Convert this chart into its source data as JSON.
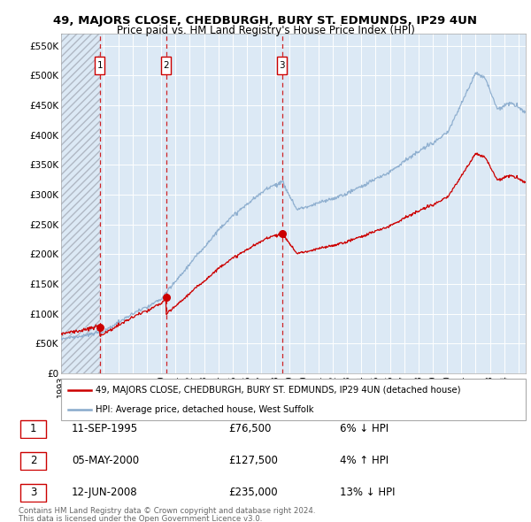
{
  "title": "49, MAJORS CLOSE, CHEDBURGH, BURY ST. EDMUNDS, IP29 4UN",
  "subtitle": "Price paid vs. HM Land Registry's House Price Index (HPI)",
  "sale_info": [
    {
      "label": "1",
      "date": "11-SEP-1995",
      "price": "£76,500",
      "hpi": "6% ↓ HPI"
    },
    {
      "label": "2",
      "date": "05-MAY-2000",
      "price": "£127,500",
      "hpi": "4% ↑ HPI"
    },
    {
      "label": "3",
      "date": "12-JUN-2008",
      "price": "£235,000",
      "hpi": "13% ↓ HPI"
    }
  ],
  "legend_line1": "49, MAJORS CLOSE, CHEDBURGH, BURY ST. EDMUNDS, IP29 4UN (detached house)",
  "legend_line2": "HPI: Average price, detached house, West Suffolk",
  "footnote1": "Contains HM Land Registry data © Crown copyright and database right 2024.",
  "footnote2": "This data is licensed under the Open Government Licence v3.0.",
  "property_line_color": "#cc0000",
  "hpi_line_color": "#88aacc",
  "ylim": [
    0,
    570000
  ],
  "yticks": [
    0,
    50000,
    100000,
    150000,
    200000,
    250000,
    300000,
    350000,
    400000,
    450000,
    500000,
    550000
  ],
  "ytick_labels": [
    "£0",
    "£50K",
    "£100K",
    "£150K",
    "£200K",
    "£250K",
    "£300K",
    "£350K",
    "£400K",
    "£450K",
    "£500K",
    "£550K"
  ],
  "xlim_start": 1993.0,
  "xlim_end": 2025.5,
  "background_color": "#ffffff",
  "plot_bg_color": "#dce9f5",
  "grid_color": "#ffffff",
  "t1": 1995.703,
  "t2": 2000.338,
  "t3": 2008.451,
  "p1": 76500,
  "p2": 127500,
  "p3": 235000
}
